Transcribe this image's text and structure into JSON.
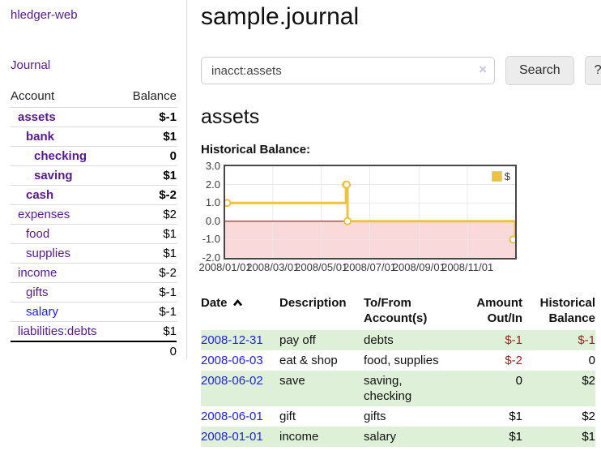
{
  "app": {
    "brand": "hledger-web",
    "nav": {
      "journal": "Journal"
    }
  },
  "sidebar": {
    "columns": {
      "account": "Account",
      "balance": "Balance"
    },
    "accounts": [
      {
        "name": "assets",
        "balance": "$-1"
      },
      {
        "name": "bank",
        "balance": "$1"
      },
      {
        "name": "checking",
        "balance": "0"
      },
      {
        "name": "saving",
        "balance": "$1"
      },
      {
        "name": "cash",
        "balance": "$-2"
      },
      {
        "name": "expenses",
        "balance": "$2"
      },
      {
        "name": "food",
        "balance": "$1"
      },
      {
        "name": "supplies",
        "balance": "$1"
      },
      {
        "name": "income",
        "balance": "$-2"
      },
      {
        "name": "gifts",
        "balance": "$-1"
      },
      {
        "name": "salary",
        "balance": "$-1"
      },
      {
        "name": "liabilities:debts",
        "balance": "$1"
      }
    ],
    "total": "0"
  },
  "main": {
    "title": "sample.journal",
    "search": {
      "value": "inacct:assets",
      "clear_icon": "×",
      "search_button": "Search",
      "help_button": "?"
    },
    "account_heading": "assets",
    "chart_title": "Historical Balance:"
  },
  "chart_data": {
    "type": "line",
    "step": true,
    "title": "Historical Balance:",
    "legend_label": "$",
    "legend_position": "top-right",
    "x": [
      "2008-01-01",
      "2008-06-01",
      "2008-06-02",
      "2008-06-03",
      "2008-12-31"
    ],
    "values": [
      1,
      2,
      2,
      0,
      -1
    ],
    "xrange": [
      "2008-01-01",
      "2008-12-31"
    ],
    "ylim": [
      -2,
      3
    ],
    "yticks": [
      3.0,
      2.0,
      1.0,
      0.0,
      -1.0,
      -2.0
    ],
    "xticks": [
      "2008/01/01",
      "2008/03/01",
      "2008/05/01",
      "2008/07/01",
      "2008/09/01",
      "2008/11/01"
    ],
    "grid": true,
    "series_color": "#edc240",
    "marker_fill": "#ffffff",
    "below_zero_fill": "#f9d9d9",
    "zero_line_color": "#8b0000",
    "grid_color": "#e9e9e9"
  },
  "register": {
    "headers": {
      "date": "Date",
      "description": "Description",
      "tofrom": "To/From Account(s)",
      "amount": "Amount Out/In",
      "historical": "Historical Balance"
    },
    "rows": [
      {
        "date": "2008-12-31",
        "description": "pay off",
        "accounts": "debts",
        "amount": "$-1",
        "historical": "$-1"
      },
      {
        "date": "2008-06-03",
        "description": "eat & shop",
        "accounts": "food, supplies",
        "amount": "$-2",
        "historical": "0"
      },
      {
        "date": "2008-06-02",
        "description": "save",
        "accounts": "saving,\nchecking",
        "amount": "0",
        "historical": "$2"
      },
      {
        "date": "2008-06-01",
        "description": "gift",
        "accounts": "gifts",
        "amount": "$1",
        "historical": "$2"
      },
      {
        "date": "2008-01-01",
        "description": "income",
        "accounts": "salary",
        "amount": "$1",
        "historical": "$1"
      }
    ]
  }
}
